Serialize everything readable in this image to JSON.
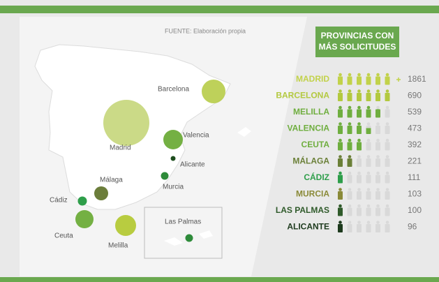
{
  "source": "FUENTE: Elaboración propia",
  "map_labels": [
    "Barcelona",
    "Madrid",
    "Valencia",
    "Alicante",
    "Murcia",
    "Málaga",
    "Cádiz",
    "Ceuta",
    "Melilla",
    "Las Palmas"
  ],
  "ranking": {
    "title_lines": [
      "PROVINCIAS CON",
      "MÁS SOLICITUDES"
    ],
    "rows": [
      {
        "name": "MADRID",
        "value": 1861,
        "color": "#c2d24a"
      },
      {
        "name": "BARCELONA",
        "value": 690,
        "color": "#b3c93f"
      },
      {
        "name": "MELILLA",
        "value": 539,
        "color": "#6fae3f"
      },
      {
        "name": "VALENCIA",
        "value": 473,
        "color": "#6fae3f"
      },
      {
        "name": "CEUTA",
        "value": 392,
        "color": "#6fae3f"
      },
      {
        "name": "MÁLAGA",
        "value": 221,
        "color": "#6b8038"
      },
      {
        "name": "CÁDIZ",
        "value": 111,
        "color": "#2e9e4a"
      },
      {
        "name": "MURCIA",
        "value": 103,
        "color": "#8a8a38"
      },
      {
        "name": "LAS PALMAS",
        "value": 100,
        "color": "#2f5a2a"
      },
      {
        "name": "ALICANTE",
        "value": 96,
        "color": "#1d3a1d"
      }
    ]
  }
}
